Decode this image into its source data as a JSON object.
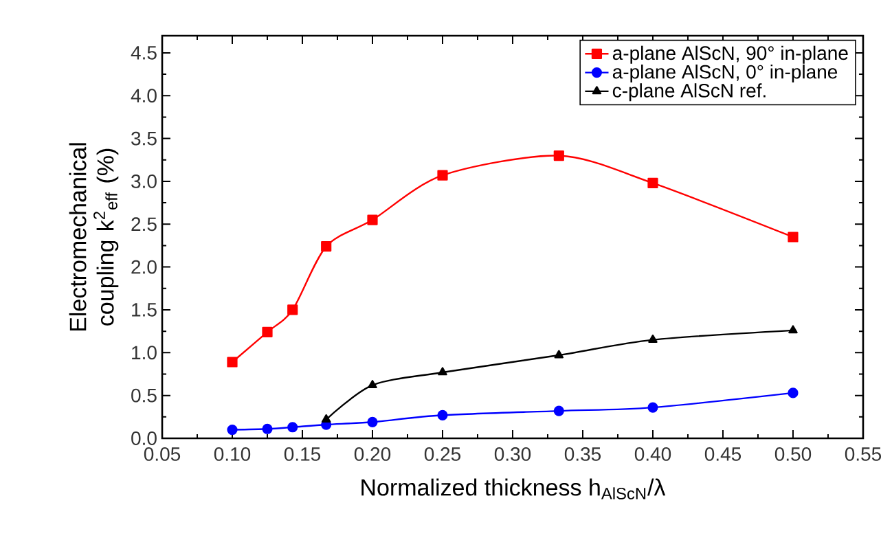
{
  "chart_data": {
    "type": "line",
    "xlabel": "Normalized thickness h$_{AlScN}$/λ",
    "ylabel": "Electromechanical coupling k$^{2}$$_{eff}$ (%)",
    "xlim": [
      0.05,
      0.55
    ],
    "xticks": [
      0.05,
      {
        "value": 0.1,
        "label": "0.10"
      },
      0.15,
      {
        "value": 0.2,
        "label": "0.20"
      },
      0.25,
      {
        "value": 0.3,
        "label": "0.30"
      },
      0.35,
      {
        "value": 0.4,
        "label": "0.40"
      },
      0.45,
      {
        "value": 0.5,
        "label": "0.50"
      },
      0.55
    ],
    "ylim": [
      0,
      4.7
    ],
    "yticks": [
      {
        "value": 0,
        "label": "0.0"
      },
      0.5,
      {
        "value": 1,
        "label": "1.0"
      },
      1.5,
      {
        "value": 2,
        "label": "2.0"
      },
      2.5,
      {
        "value": 3,
        "label": "3.0"
      },
      3.5,
      {
        "value": 4,
        "label": "4.0"
      },
      4.5
    ],
    "grid": false,
    "legend": "top right",
    "line_style": "solid",
    "series": [
      {
        "name": "a-plane AlScN, 90° in-plane",
        "color": "#ff0000",
        "marker": "square",
        "x": [
          0.1,
          0.125,
          0.143,
          0.167,
          0.2,
          0.25,
          0.333,
          0.4,
          0.5
        ],
        "values": [
          0.89,
          1.24,
          1.5,
          2.24,
          2.55,
          3.07,
          3.3,
          2.98,
          2.35
        ]
      },
      {
        "name": "a-plane AlScN, 0° in-plane",
        "color": "#0000ff",
        "marker": "circle",
        "x": [
          0.1,
          0.125,
          0.143,
          0.167,
          0.2,
          0.25,
          0.333,
          0.4,
          0.5
        ],
        "values": [
          0.1,
          0.11,
          0.13,
          0.16,
          0.19,
          0.27,
          0.32,
          0.36,
          0.53
        ]
      },
      {
        "name": "c-plane AlScN ref.",
        "color": "#000000",
        "marker": "triangle",
        "x": [
          0.167,
          0.2,
          0.25,
          0.333,
          0.4,
          0.5
        ],
        "values": [
          0.22,
          0.62,
          0.77,
          0.97,
          1.15,
          1.26
        ]
      }
    ]
  }
}
